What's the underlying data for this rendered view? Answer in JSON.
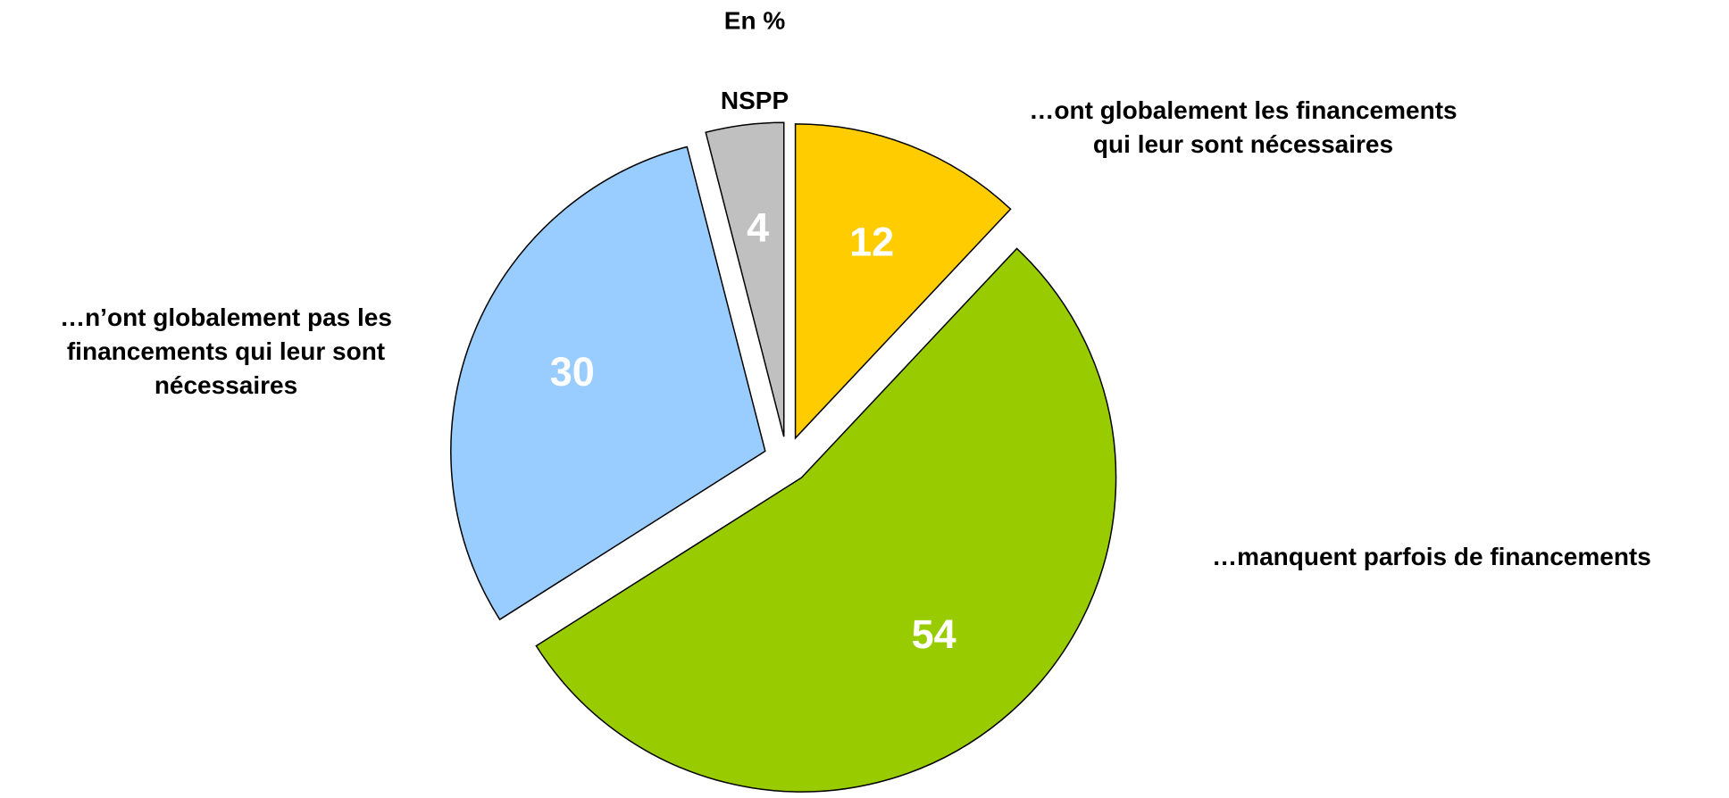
{
  "chart_data": {
    "type": "pie",
    "title": "En %",
    "categories": [
      "…ont globalement les financements\nqui leur sont nécessaires",
      "…manquent parfois de financements",
      "…n’ont globalement pas les\nfinancements qui leur sont\nnécessaires",
      "NSPP"
    ],
    "values": [
      12,
      54,
      30,
      4
    ],
    "colors": [
      "#FFCC00",
      "#99CC00",
      "#99CCFF",
      "#C0C0C0"
    ]
  }
}
